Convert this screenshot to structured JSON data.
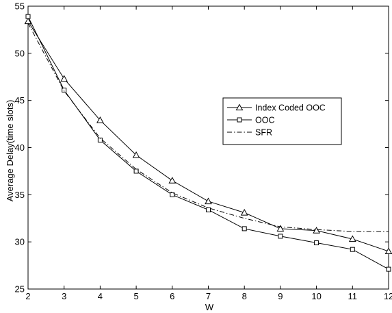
{
  "chart_data": {
    "type": "line",
    "title": "",
    "xlabel": "W",
    "ylabel": "Average Delay(time slots)",
    "xlim": [
      2,
      12
    ],
    "ylim": [
      25,
      55
    ],
    "xticks": [
      2,
      3,
      4,
      5,
      6,
      7,
      8,
      9,
      10,
      11,
      12
    ],
    "yticks": [
      25,
      30,
      35,
      40,
      45,
      50,
      55
    ],
    "grid": false,
    "legend_position": "center-right",
    "x": [
      2,
      3,
      4,
      5,
      6,
      7,
      8,
      9,
      10,
      11,
      12
    ],
    "series": [
      {
        "name": "Index Coded OOC",
        "marker": "triangle",
        "line_style": "solid",
        "color": "#000000",
        "values": [
          53.4,
          47.3,
          42.9,
          39.2,
          36.5,
          34.3,
          33.1,
          31.4,
          31.2,
          30.3,
          29.0
        ]
      },
      {
        "name": "OOC",
        "marker": "square",
        "line_style": "solid",
        "color": "#000000",
        "values": [
          53.9,
          46.1,
          40.8,
          37.5,
          35.0,
          33.4,
          31.4,
          30.6,
          29.9,
          29.2,
          27.1
        ]
      },
      {
        "name": "SFR",
        "marker": "none",
        "line_style": "dash-dot",
        "color": "#000000",
        "values": [
          53.2,
          46.0,
          41.0,
          37.7,
          35.2,
          33.6,
          32.5,
          31.6,
          31.3,
          31.1,
          31.1
        ]
      }
    ]
  }
}
